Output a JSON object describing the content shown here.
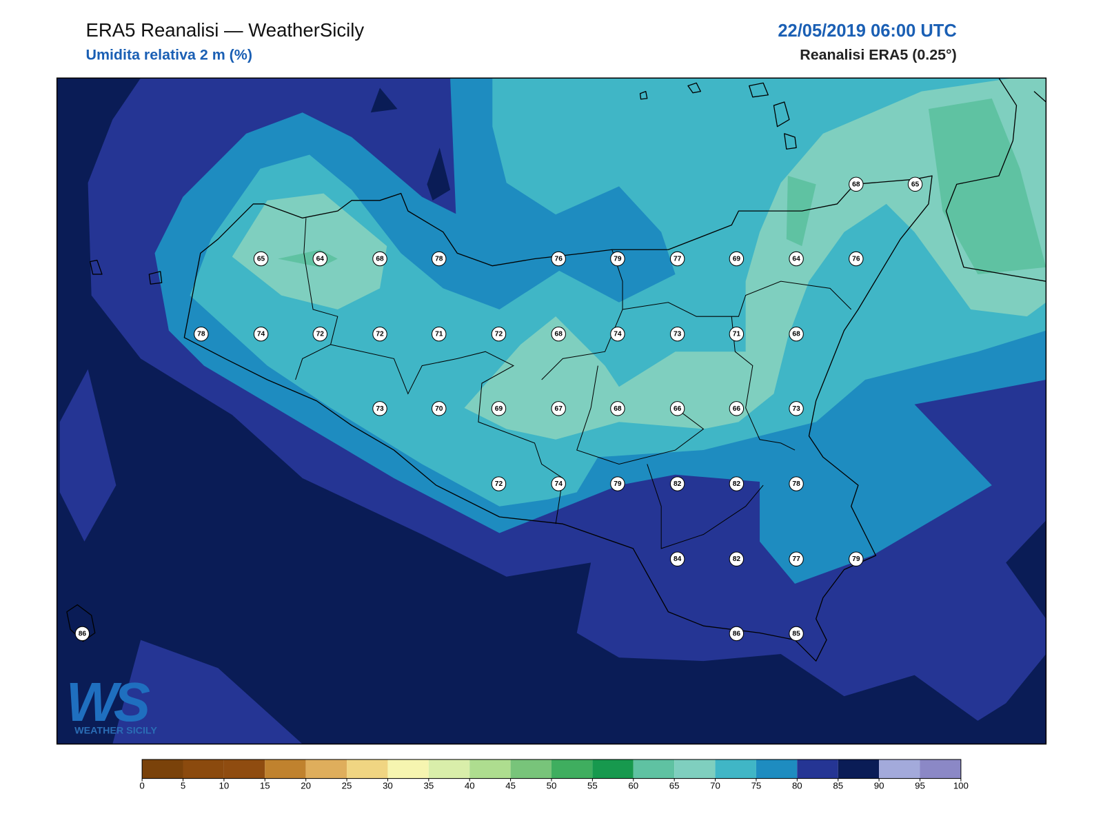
{
  "header": {
    "title": "ERA5 Reanalisi — WeatherSicily",
    "subtitle": "Umidita relativa 2 m (%)",
    "datetime": "22/05/2019 06:00 UTC",
    "source": "Reanalisi ERA5 (0.25°)"
  },
  "stations": [
    68,
    65,
    65,
    64,
    68,
    78,
    76,
    79,
    77,
    69,
    64,
    76,
    78,
    74,
    72,
    72,
    71,
    72,
    68,
    74,
    73,
    71,
    68,
    73,
    70,
    69,
    67,
    68,
    66,
    66,
    73,
    72,
    74,
    79,
    82,
    82,
    78,
    84,
    82,
    77,
    79,
    86,
    86,
    85
  ],
  "colorbar": {
    "ticks": [
      0,
      5,
      10,
      15,
      20,
      25,
      30,
      35,
      40,
      45,
      50,
      55,
      60,
      65,
      70,
      75,
      80,
      85,
      90,
      95,
      100
    ],
    "colors": [
      "#7a420a",
      "#8b4a0e",
      "#8f4c10",
      "#c0822e",
      "#dfae5c",
      "#f0d582",
      "#f6f5b0",
      "#d9eeaa",
      "#aedd8f",
      "#78c47a",
      "#3fae5f",
      "#17994e",
      "#5fc2a2",
      "#7fcfbf",
      "#40b6c6",
      "#1e8cc0",
      "#253594",
      "#0a1c56",
      "#a3aadb",
      "#8b88c6"
    ]
  },
  "logo": {
    "mark": "WS",
    "name": "WEATHER SICILY"
  }
}
